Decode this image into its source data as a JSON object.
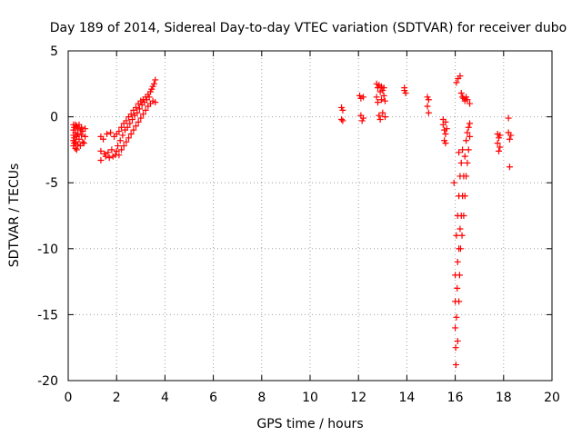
{
  "chart_data": {
    "type": "scatter",
    "title": "Day 189 of 2014, Sidereal Day-to-day VTEC variation (SDTVAR) for receiver dubo",
    "xlabel": "GPS time / hours",
    "ylabel": "SDTVAR / TECUs",
    "xlim": [
      0,
      20
    ],
    "ylim": [
      -20,
      5
    ],
    "grid": true,
    "marker": "+",
    "x_ticks": [
      0,
      2,
      4,
      6,
      8,
      10,
      12,
      14,
      16,
      18,
      20
    ],
    "y_ticks": [
      5,
      0,
      -5,
      -10,
      -15,
      -20
    ],
    "x_tick_labels": [
      "0",
      "2",
      "4",
      "6",
      "8",
      "10",
      "12",
      "14",
      "16",
      "18",
      "20"
    ],
    "y_tick_labels": [
      "5",
      "0",
      "-5",
      "-10",
      "-15",
      "-20"
    ],
    "series": [
      {
        "name": "SDTVAR",
        "color": "#ff0000",
        "points": [
          [
            0.22,
            -0.6
          ],
          [
            0.22,
            -1.0
          ],
          [
            0.22,
            -1.4
          ],
          [
            0.22,
            -1.8
          ],
          [
            0.22,
            -2.2
          ],
          [
            0.25,
            -0.8
          ],
          [
            0.25,
            -1.6
          ],
          [
            0.25,
            -2.0
          ],
          [
            0.3,
            -0.6
          ],
          [
            0.3,
            -1.2
          ],
          [
            0.3,
            -1.9
          ],
          [
            0.3,
            -2.4
          ],
          [
            0.35,
            -0.7
          ],
          [
            0.35,
            -1.5
          ],
          [
            0.35,
            -2.5
          ],
          [
            0.4,
            -0.9
          ],
          [
            0.4,
            -1.3
          ],
          [
            0.4,
            -2.1
          ],
          [
            0.45,
            -0.6
          ],
          [
            0.45,
            -1.7
          ],
          [
            0.5,
            -1.0
          ],
          [
            0.5,
            -2.2
          ],
          [
            0.55,
            -0.8
          ],
          [
            0.55,
            -1.4
          ],
          [
            0.6,
            -1.1
          ],
          [
            0.6,
            -1.9
          ],
          [
            0.65,
            -2.0
          ],
          [
            0.7,
            -0.9
          ],
          [
            0.7,
            -1.5
          ],
          [
            1.35,
            -1.5
          ],
          [
            1.35,
            -2.6
          ],
          [
            1.35,
            -3.3
          ],
          [
            1.45,
            -1.7
          ],
          [
            1.5,
            -2.8
          ],
          [
            1.55,
            -3.0
          ],
          [
            1.6,
            -1.3
          ],
          [
            1.65,
            -2.7
          ],
          [
            1.7,
            -3.1
          ],
          [
            1.75,
            -1.2
          ],
          [
            1.8,
            -2.5
          ],
          [
            1.85,
            -3.0
          ],
          [
            1.9,
            -1.5
          ],
          [
            1.95,
            -2.9
          ],
          [
            2.0,
            -1.3
          ],
          [
            2.0,
            -2.6
          ],
          [
            2.05,
            -2.2
          ],
          [
            2.1,
            -1.1
          ],
          [
            2.1,
            -2.9
          ],
          [
            2.15,
            -1.8
          ],
          [
            2.2,
            -0.8
          ],
          [
            2.2,
            -2.5
          ],
          [
            2.25,
            -1.4
          ],
          [
            2.3,
            -0.5
          ],
          [
            2.3,
            -2.2
          ],
          [
            2.35,
            -1.0
          ],
          [
            2.4,
            -0.3
          ],
          [
            2.4,
            -1.9
          ],
          [
            2.45,
            -0.8
          ],
          [
            2.5,
            0.0
          ],
          [
            2.5,
            -1.6
          ],
          [
            2.55,
            -0.5
          ],
          [
            2.6,
            0.2
          ],
          [
            2.6,
            -1.3
          ],
          [
            2.65,
            -0.2
          ],
          [
            2.7,
            0.5
          ],
          [
            2.7,
            -1.0
          ],
          [
            2.75,
            0.1
          ],
          [
            2.8,
            0.7
          ],
          [
            2.8,
            -0.7
          ],
          [
            2.85,
            0.3
          ],
          [
            2.9,
            1.0
          ],
          [
            2.9,
            -0.4
          ],
          [
            2.95,
            0.6
          ],
          [
            3.0,
            1.2
          ],
          [
            3.0,
            -0.1
          ],
          [
            3.05,
            0.9
          ],
          [
            3.1,
            1.3
          ],
          [
            3.1,
            0.2
          ],
          [
            3.15,
            1.1
          ],
          [
            3.2,
            1.5
          ],
          [
            3.2,
            0.5
          ],
          [
            3.25,
            1.3
          ],
          [
            3.3,
            1.7
          ],
          [
            3.3,
            0.8
          ],
          [
            3.35,
            1.5
          ],
          [
            3.4,
            1.9
          ],
          [
            3.4,
            1.0
          ],
          [
            3.45,
            2.1
          ],
          [
            3.5,
            2.3
          ],
          [
            3.5,
            1.2
          ],
          [
            3.55,
            2.5
          ],
          [
            3.6,
            2.8
          ],
          [
            3.6,
            1.1
          ],
          [
            11.3,
            0.7
          ],
          [
            11.3,
            -0.2
          ],
          [
            11.35,
            0.5
          ],
          [
            11.35,
            -0.3
          ],
          [
            12.05,
            1.6
          ],
          [
            12.1,
            1.4
          ],
          [
            12.1,
            0.1
          ],
          [
            12.15,
            -0.3
          ],
          [
            12.2,
            1.5
          ],
          [
            12.2,
            -0.1
          ],
          [
            12.75,
            2.5
          ],
          [
            12.75,
            1.5
          ],
          [
            12.8,
            2.2
          ],
          [
            12.8,
            1.1
          ],
          [
            12.85,
            2.4
          ],
          [
            12.85,
            0.1
          ],
          [
            12.9,
            1.9
          ],
          [
            12.9,
            -0.2
          ],
          [
            12.95,
            2.3
          ],
          [
            12.95,
            1.3
          ],
          [
            13.0,
            2.0
          ],
          [
            13.0,
            0.3
          ],
          [
            13.05,
            2.2
          ],
          [
            13.05,
            1.6
          ],
          [
            13.1,
            1.2
          ],
          [
            13.1,
            0.0
          ],
          [
            13.9,
            2.2
          ],
          [
            13.9,
            2.0
          ],
          [
            13.95,
            1.8
          ],
          [
            14.85,
            1.5
          ],
          [
            14.85,
            0.8
          ],
          [
            14.9,
            1.3
          ],
          [
            14.9,
            0.3
          ],
          [
            15.5,
            -0.2
          ],
          [
            15.5,
            -0.6
          ],
          [
            15.55,
            -1.0
          ],
          [
            15.55,
            -1.8
          ],
          [
            15.6,
            -0.4
          ],
          [
            15.6,
            -1.3
          ],
          [
            15.6,
            -2.0
          ],
          [
            15.65,
            -0.9
          ],
          [
            15.95,
            -5.0
          ],
          [
            16.0,
            -12.0
          ],
          [
            16.0,
            -14.0
          ],
          [
            16.0,
            -16.0
          ],
          [
            16.02,
            -17.5
          ],
          [
            16.03,
            -18.8
          ],
          [
            16.05,
            -15.2
          ],
          [
            16.05,
            -9.0
          ],
          [
            16.05,
            2.6
          ],
          [
            16.08,
            -13.0
          ],
          [
            16.1,
            -17.0
          ],
          [
            16.1,
            -11.0
          ],
          [
            16.1,
            -7.5
          ],
          [
            16.12,
            2.9
          ],
          [
            16.15,
            -14.0
          ],
          [
            16.15,
            -10.0
          ],
          [
            16.15,
            -6.0
          ],
          [
            16.15,
            -2.7
          ],
          [
            16.18,
            -12.0
          ],
          [
            16.2,
            -8.5
          ],
          [
            16.2,
            -4.5
          ],
          [
            16.2,
            3.1
          ],
          [
            16.22,
            -10.0
          ],
          [
            16.25,
            -7.5
          ],
          [
            16.25,
            -3.5
          ],
          [
            16.25,
            1.8
          ],
          [
            16.28,
            -9.0
          ],
          [
            16.3,
            -6.0
          ],
          [
            16.3,
            -2.5
          ],
          [
            16.3,
            1.5
          ],
          [
            16.35,
            -7.5
          ],
          [
            16.35,
            -4.5
          ],
          [
            16.35,
            1.4
          ],
          [
            16.4,
            -6.0
          ],
          [
            16.4,
            -3.0
          ],
          [
            16.4,
            1.2
          ],
          [
            16.45,
            -4.5
          ],
          [
            16.45,
            -1.8
          ],
          [
            16.45,
            1.5
          ],
          [
            16.5,
            -3.5
          ],
          [
            16.5,
            -1.2
          ],
          [
            16.5,
            1.3
          ],
          [
            16.55,
            -2.5
          ],
          [
            16.55,
            -0.8
          ],
          [
            16.6,
            -1.5
          ],
          [
            16.6,
            -0.5
          ],
          [
            16.6,
            1.0
          ],
          [
            17.75,
            -1.3
          ],
          [
            17.75,
            -2.0
          ],
          [
            17.8,
            -1.6
          ],
          [
            17.8,
            -2.6
          ],
          [
            17.85,
            -1.4
          ],
          [
            17.85,
            -2.3
          ],
          [
            18.2,
            -0.1
          ],
          [
            18.2,
            -1.2
          ],
          [
            18.25,
            -3.8
          ],
          [
            18.25,
            -1.7
          ],
          [
            18.3,
            -1.4
          ]
        ]
      }
    ]
  }
}
